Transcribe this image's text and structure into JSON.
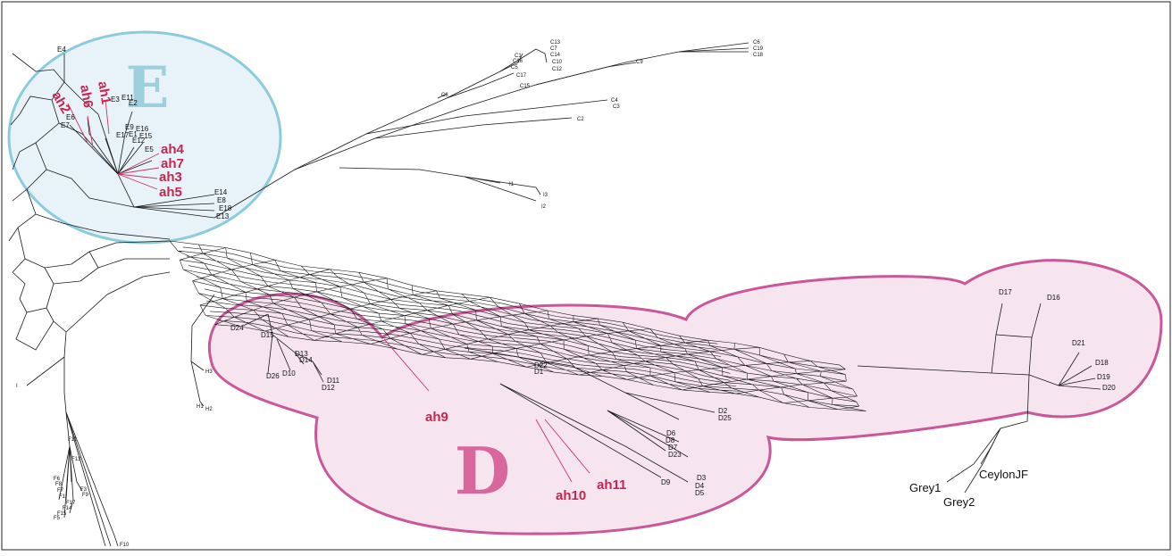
{
  "groups": {
    "E": {
      "letter": "E",
      "color": "#9ecfdd",
      "fill": "#e7f3f8",
      "stroke": "#8ccbdc"
    },
    "D": {
      "letter": "D",
      "color": "#d9679e",
      "fill": "#f6e4ef",
      "stroke": "#c9579a"
    }
  },
  "labels": {
    "E": [
      "E4",
      "E11",
      "E2",
      "E3",
      "E6",
      "E7",
      "E9",
      "E16",
      "E1",
      "E15",
      "E17",
      "E12",
      "E5",
      "E14",
      "E8",
      "E18",
      "E13"
    ],
    "C": [
      "C13",
      "C7",
      "C1",
      "C16",
      "C14",
      "C10",
      "C12",
      "C5",
      "C17",
      "C15",
      "C8",
      "C9",
      "C6",
      "C19",
      "C18",
      "C4",
      "C3",
      "C2"
    ],
    "I": [
      "I1",
      "I3",
      "I2",
      "I"
    ],
    "H": [
      "H3",
      "H1",
      "H2"
    ],
    "F": [
      "F11",
      "F13",
      "F6",
      "F8",
      "F7",
      "F3",
      "F9",
      "F1",
      "F17",
      "F14",
      "F15",
      "F5",
      "F10"
    ],
    "D": [
      "D24",
      "D15",
      "D13",
      "D14",
      "D10",
      "D26",
      "D11",
      "D12",
      "D22",
      "D1",
      "D2",
      "D25",
      "D6",
      "D8",
      "D7",
      "D23",
      "D9",
      "D3",
      "D4",
      "D5",
      "D17",
      "D16",
      "D21",
      "D18",
      "D19",
      "D20"
    ],
    "ah": [
      "ah2",
      "ah6",
      "ah1",
      "ah4",
      "ah7",
      "ah3",
      "ah5",
      "ah9",
      "ah10",
      "ah11"
    ],
    "outgroup": [
      "Grey1",
      "Grey2",
      "CeylonJF"
    ]
  }
}
